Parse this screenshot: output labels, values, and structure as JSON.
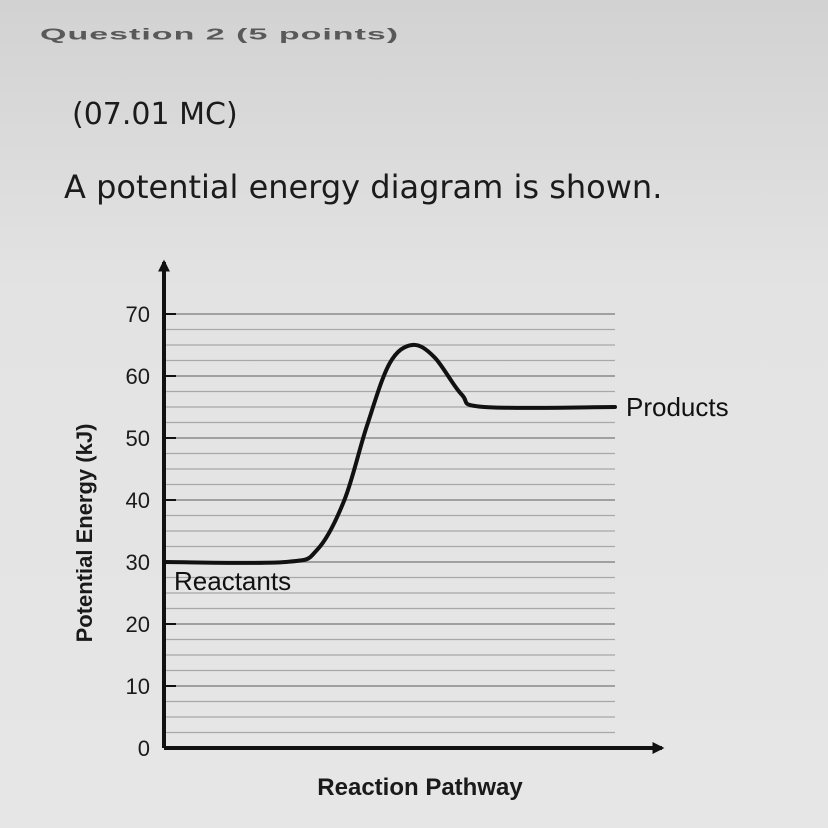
{
  "question": {
    "heading": "Question 2 (5 points)",
    "code": "(07.01 MC)",
    "prompt": "A potential energy diagram is shown."
  },
  "chart_data": {
    "type": "line",
    "title": "",
    "xlabel": "Reaction Pathway",
    "ylabel": "Potential Energy (kJ)",
    "ylim": [
      0,
      70
    ],
    "yticks": [
      0,
      10,
      20,
      30,
      40,
      50,
      60,
      70
    ],
    "grid": true,
    "minor_grid_step": 2.5,
    "line_color": "#111111",
    "reactants": {
      "label": "Reactants",
      "energy": 30
    },
    "products": {
      "label": "Products",
      "energy": 55
    },
    "peak_energy": 65,
    "series": [
      {
        "points": [
          {
            "x": 0.0,
            "y": 30
          },
          {
            "x": 0.27,
            "y": 30
          },
          {
            "x": 0.34,
            "y": 32
          },
          {
            "x": 0.4,
            "y": 40
          },
          {
            "x": 0.45,
            "y": 52
          },
          {
            "x": 0.5,
            "y": 62
          },
          {
            "x": 0.55,
            "y": 65
          },
          {
            "x": 0.6,
            "y": 63
          },
          {
            "x": 0.66,
            "y": 57
          },
          {
            "x": 0.71,
            "y": 55
          },
          {
            "x": 1.0,
            "y": 55
          }
        ]
      }
    ]
  }
}
